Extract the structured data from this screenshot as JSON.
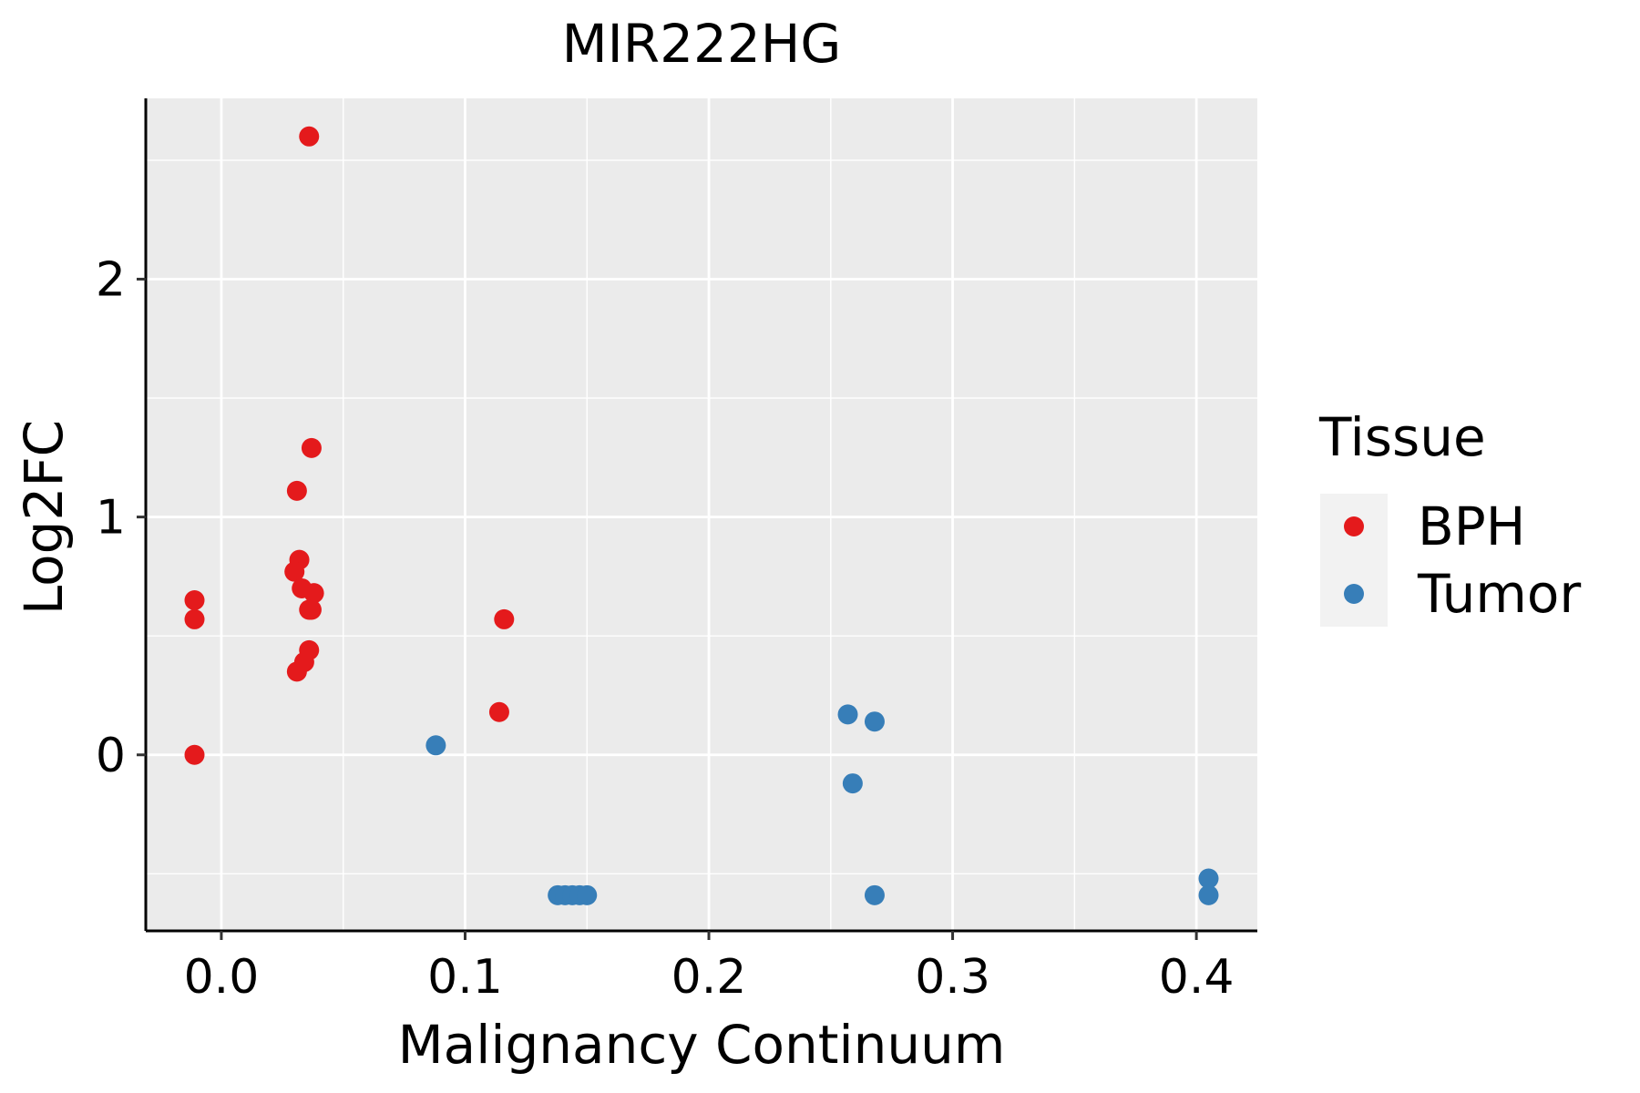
{
  "chart_data": {
    "type": "scatter",
    "title": "MIR222HG",
    "xlabel": "Malignancy Continuum",
    "ylabel": "Log2FC",
    "xlim": [
      -0.031,
      0.425
    ],
    "ylim": [
      -0.74,
      2.76
    ],
    "x_ticks": [
      0.0,
      0.1,
      0.2,
      0.3,
      0.4
    ],
    "x_tick_labels": [
      "0.0",
      "0.1",
      "0.2",
      "0.3",
      "0.4"
    ],
    "y_ticks": [
      0,
      1,
      2
    ],
    "y_tick_labels": [
      "0",
      "1",
      "2"
    ],
    "grid": true,
    "legend": {
      "title": "Tissue",
      "position": "right"
    },
    "series": [
      {
        "name": "BPH",
        "color": "#E41A1C",
        "points": [
          {
            "x": 0.036,
            "y": 2.6
          },
          {
            "x": 0.037,
            "y": 1.29
          },
          {
            "x": 0.031,
            "y": 1.11
          },
          {
            "x": 0.032,
            "y": 0.82
          },
          {
            "x": 0.03,
            "y": 0.77
          },
          {
            "x": 0.033,
            "y": 0.7
          },
          {
            "x": 0.038,
            "y": 0.68
          },
          {
            "x": 0.036,
            "y": 0.61
          },
          {
            "x": 0.037,
            "y": 0.61
          },
          {
            "x": 0.036,
            "y": 0.44
          },
          {
            "x": 0.034,
            "y": 0.39
          },
          {
            "x": 0.031,
            "y": 0.35
          },
          {
            "x": -0.011,
            "y": 0.65
          },
          {
            "x": -0.011,
            "y": 0.57
          },
          {
            "x": -0.011,
            "y": 0.0
          },
          {
            "x": 0.116,
            "y": 0.57
          },
          {
            "x": 0.114,
            "y": 0.18
          }
        ]
      },
      {
        "name": "Tumor",
        "color": "#377EB8",
        "points": [
          {
            "x": 0.088,
            "y": 0.04
          },
          {
            "x": 0.138,
            "y": -0.59
          },
          {
            "x": 0.141,
            "y": -0.59
          },
          {
            "x": 0.144,
            "y": -0.59
          },
          {
            "x": 0.147,
            "y": -0.59
          },
          {
            "x": 0.15,
            "y": -0.59
          },
          {
            "x": 0.257,
            "y": 0.17
          },
          {
            "x": 0.268,
            "y": 0.14
          },
          {
            "x": 0.259,
            "y": -0.12
          },
          {
            "x": 0.268,
            "y": -0.59
          },
          {
            "x": 0.405,
            "y": -0.52
          },
          {
            "x": 0.405,
            "y": -0.59
          }
        ]
      }
    ]
  }
}
